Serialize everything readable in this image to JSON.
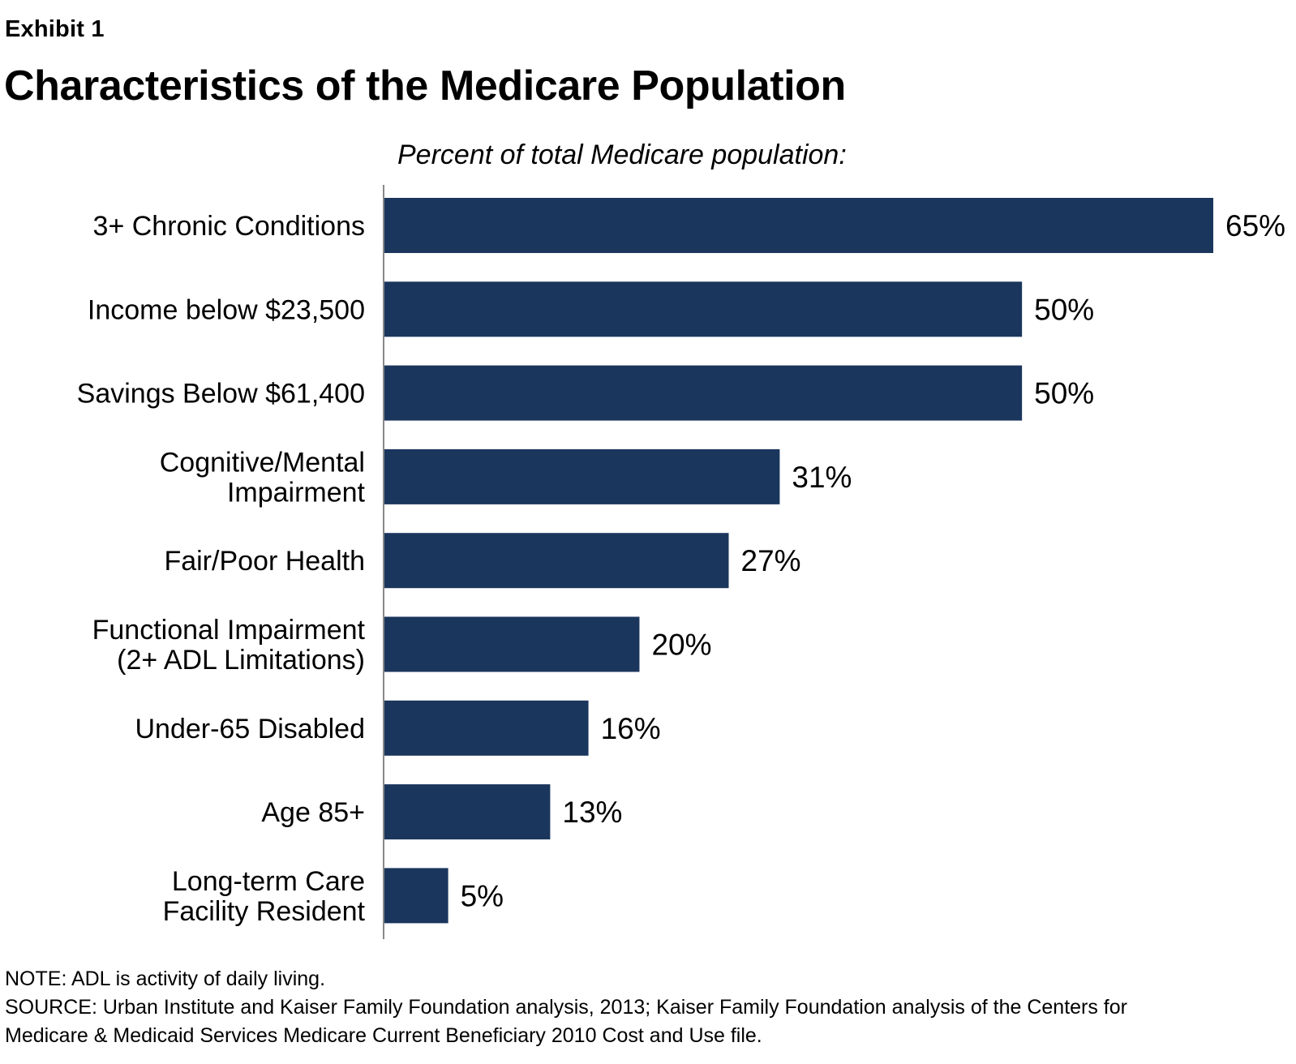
{
  "header": {
    "exhibit": "Exhibit 1",
    "title": "Characteristics of the Medicare Population",
    "subtitle": "Percent of total Medicare population:"
  },
  "chart_data": {
    "type": "bar",
    "orientation": "horizontal",
    "categories": [
      [
        "3+ Chronic Conditions"
      ],
      [
        "Income below $23,500"
      ],
      [
        "Savings Below $61,400"
      ],
      [
        "Cognitive/Mental",
        "Impairment"
      ],
      [
        "Fair/Poor Health"
      ],
      [
        "Functional Impairment",
        "(2+ ADL Limitations)"
      ],
      [
        "Under-65 Disabled"
      ],
      [
        "Age 85+"
      ],
      [
        "Long-term Care",
        "Facility Resident"
      ]
    ],
    "values": [
      65,
      50,
      50,
      31,
      27,
      20,
      16,
      13,
      5
    ],
    "value_labels": [
      "65%",
      "50%",
      "50%",
      "31%",
      "27%",
      "20%",
      "16%",
      "13%",
      "5%"
    ],
    "xlim": [
      0,
      65
    ],
    "grid": false,
    "bar_color": "#1b365d"
  },
  "footer": {
    "note": "NOTE: ADL is activity of daily living.",
    "source_line1": "SOURCE: Urban Institute and Kaiser Family Foundation analysis, 2013; Kaiser Family Foundation analysis of the Centers for",
    "source_line2": "Medicare & Medicaid Services Medicare Current Beneficiary 2010 Cost and Use file."
  }
}
